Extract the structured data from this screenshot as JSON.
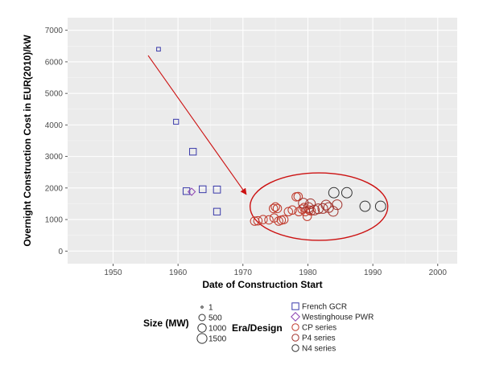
{
  "chart_data": {
    "type": "scatter",
    "xlabel": "Date of Construction Start",
    "ylabel": "Overnight Construction Cost in EUR(2010)/kW",
    "xlim": [
      1943,
      2003
    ],
    "ylim": [
      -400,
      7400
    ],
    "x_ticks": [
      1950,
      1960,
      1970,
      1980,
      1990,
      2000
    ],
    "y_ticks": [
      0,
      1000,
      2000,
      3000,
      4000,
      5000,
      6000,
      7000
    ],
    "x_tick_labels": [
      "1950",
      "1960",
      "1970",
      "1980",
      "1990",
      "2000"
    ],
    "y_tick_labels": [
      "0",
      "1000",
      "2000",
      "3000",
      "4000",
      "5000",
      "6000",
      "7000"
    ],
    "grid": true,
    "background": "#ebebeb",
    "size_legend": {
      "title": "Size (MW)",
      "entries": [
        {
          "label": "1",
          "size": 1
        },
        {
          "label": "500",
          "size": 500
        },
        {
          "label": "1000",
          "size": 1000
        },
        {
          "label": "1500",
          "size": 1500
        }
      ]
    },
    "era_legend": {
      "title": "Era/Design",
      "entries": [
        {
          "label": "French GCR",
          "shape": "square",
          "color": "#3a3aaa"
        },
        {
          "label": "Westinghouse PWR",
          "shape": "diamond",
          "color": "#8a3fb0"
        },
        {
          "label": "CP series",
          "shape": "circle",
          "color": "#c0392b"
        },
        {
          "label": "P4 series",
          "shape": "circle",
          "color": "#a0302a"
        },
        {
          "label": "N4 series",
          "shape": "circle",
          "color": "#333333"
        }
      ]
    },
    "series": [
      {
        "name": "French GCR",
        "shape": "square",
        "color": "#3a3aaa",
        "points": [
          {
            "x": 1957.0,
            "y": 6400,
            "size": 70
          },
          {
            "x": 1959.7,
            "y": 4100,
            "size": 200
          },
          {
            "x": 1962.3,
            "y": 3150,
            "size": 480
          },
          {
            "x": 1961.3,
            "y": 1900,
            "size": 480
          },
          {
            "x": 1963.8,
            "y": 1960,
            "size": 500
          },
          {
            "x": 1966.0,
            "y": 1950,
            "size": 540
          },
          {
            "x": 1966.0,
            "y": 1250,
            "size": 480
          }
        ]
      },
      {
        "name": "Westinghouse PWR",
        "shape": "diamond",
        "color": "#8a3fb0",
        "points": [
          {
            "x": 1962.1,
            "y": 1880,
            "size": 310
          }
        ]
      },
      {
        "name": "CP series",
        "shape": "circle",
        "color": "#c0392b",
        "points": [
          {
            "x": 1971.8,
            "y": 950,
            "size": 900
          },
          {
            "x": 1972.3,
            "y": 960,
            "size": 900
          },
          {
            "x": 1973.1,
            "y": 1000,
            "size": 900
          },
          {
            "x": 1974.0,
            "y": 990,
            "size": 900
          },
          {
            "x": 1974.8,
            "y": 1050,
            "size": 900
          },
          {
            "x": 1974.7,
            "y": 1350,
            "size": 900
          },
          {
            "x": 1975.0,
            "y": 1400,
            "size": 900
          },
          {
            "x": 1975.3,
            "y": 1350,
            "size": 900
          },
          {
            "x": 1975.5,
            "y": 950,
            "size": 900
          },
          {
            "x": 1975.9,
            "y": 980,
            "size": 900
          },
          {
            "x": 1976.3,
            "y": 1000,
            "size": 900
          },
          {
            "x": 1977.0,
            "y": 1250,
            "size": 900
          },
          {
            "x": 1977.6,
            "y": 1300,
            "size": 900
          },
          {
            "x": 1978.2,
            "y": 1720,
            "size": 900
          },
          {
            "x": 1978.5,
            "y": 1730,
            "size": 900
          },
          {
            "x": 1978.6,
            "y": 1250,
            "size": 900
          },
          {
            "x": 1979.1,
            "y": 1330,
            "size": 900
          },
          {
            "x": 1979.4,
            "y": 1380,
            "size": 900
          },
          {
            "x": 1979.6,
            "y": 1250,
            "size": 900
          },
          {
            "x": 1979.9,
            "y": 1100,
            "size": 900
          },
          {
            "x": 1980.2,
            "y": 1300,
            "size": 900
          },
          {
            "x": 1980.5,
            "y": 1270,
            "size": 900
          }
        ]
      },
      {
        "name": "P4 series",
        "shape": "circle",
        "color": "#a0302a",
        "points": [
          {
            "x": 1979.3,
            "y": 1520,
            "size": 1300
          },
          {
            "x": 1980.1,
            "y": 1380,
            "size": 1300
          },
          {
            "x": 1980.4,
            "y": 1500,
            "size": 1300
          },
          {
            "x": 1981.0,
            "y": 1300,
            "size": 1300
          },
          {
            "x": 1981.6,
            "y": 1340,
            "size": 1300
          },
          {
            "x": 1982.3,
            "y": 1350,
            "size": 1300
          },
          {
            "x": 1982.8,
            "y": 1460,
            "size": 1300
          },
          {
            "x": 1983.2,
            "y": 1380,
            "size": 1300
          },
          {
            "x": 1983.9,
            "y": 1260,
            "size": 1300
          },
          {
            "x": 1984.5,
            "y": 1470,
            "size": 1300
          }
        ]
      },
      {
        "name": "N4 series",
        "shape": "circle",
        "color": "#333333",
        "points": [
          {
            "x": 1984.0,
            "y": 1850,
            "size": 1500
          },
          {
            "x": 1986.0,
            "y": 1850,
            "size": 1500
          },
          {
            "x": 1988.8,
            "y": 1420,
            "size": 1500
          },
          {
            "x": 1991.2,
            "y": 1420,
            "size": 1500
          }
        ]
      }
    ],
    "annotations": [
      {
        "type": "arrow",
        "from": [
          1955.4,
          6200
        ],
        "to": [
          1970.5,
          1800
        ],
        "color": "#cc1111"
      },
      {
        "type": "ellipse",
        "center": [
          1981.7,
          1410
        ],
        "radius_x": 10.6,
        "radius_y": 1070,
        "color": "#cc1111"
      }
    ]
  }
}
